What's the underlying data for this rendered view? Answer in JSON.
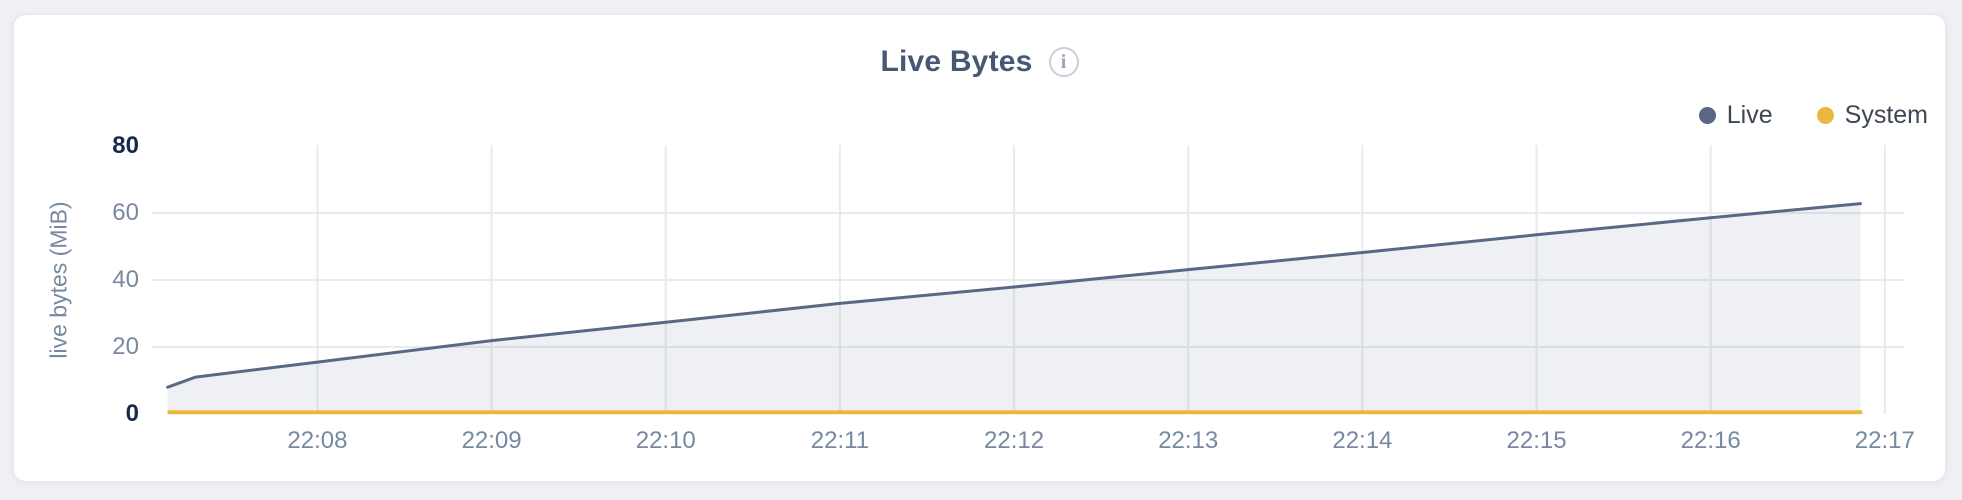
{
  "card": {
    "info_icon_glyph": "i"
  },
  "chart_data": {
    "type": "area",
    "title": "Live Bytes",
    "ylabel": "live bytes (MiB)",
    "ylim": [
      0,
      80
    ],
    "grid": true,
    "legend_position": "top-right",
    "x_axis": {
      "unit": "time HH:MM",
      "min_minutes_after_2200": 7.05,
      "max_minutes_after_2200": 17.11,
      "ticks": [
        {
          "m": 8,
          "label": "22:08"
        },
        {
          "m": 9,
          "label": "22:09"
        },
        {
          "m": 10,
          "label": "22:10"
        },
        {
          "m": 11,
          "label": "22:11"
        },
        {
          "m": 12,
          "label": "22:12"
        },
        {
          "m": 13,
          "label": "22:13"
        },
        {
          "m": 14,
          "label": "22:14"
        },
        {
          "m": 15,
          "label": "22:15"
        },
        {
          "m": 16,
          "label": "22:16"
        },
        {
          "m": 17,
          "label": "22:17"
        }
      ]
    },
    "y_axis": {
      "ticks": [
        {
          "v": 80,
          "label": "80",
          "emphasized": true,
          "gridline": false
        },
        {
          "v": 60,
          "label": "60",
          "emphasized": false,
          "gridline": true
        },
        {
          "v": 40,
          "label": "40",
          "emphasized": false,
          "gridline": true
        },
        {
          "v": 20,
          "label": "20",
          "emphasized": false,
          "gridline": true
        },
        {
          "v": 0,
          "label": "0",
          "emphasized": true,
          "gridline": false
        }
      ]
    },
    "series": [
      {
        "name": "Live",
        "color": "#5a6885",
        "fill": "rgba(90,104,133,0.10)",
        "stroke_width": 3,
        "points_min_mib": [
          [
            7.14,
            8.0
          ],
          [
            7.3,
            11.0
          ],
          [
            8,
            15.5
          ],
          [
            9,
            21.9
          ],
          [
            10,
            27.4
          ],
          [
            11,
            33.0
          ],
          [
            12,
            37.9
          ],
          [
            13,
            43.1
          ],
          [
            14,
            48.2
          ],
          [
            15,
            53.5
          ],
          [
            16,
            58.6
          ],
          [
            16.86,
            62.8
          ]
        ]
      },
      {
        "name": "System",
        "color": "#ecb73e",
        "fill": null,
        "stroke_width": 4,
        "points_min_mib": [
          [
            7.15,
            0.5
          ],
          [
            16.86,
            0.5
          ]
        ]
      }
    ]
  }
}
